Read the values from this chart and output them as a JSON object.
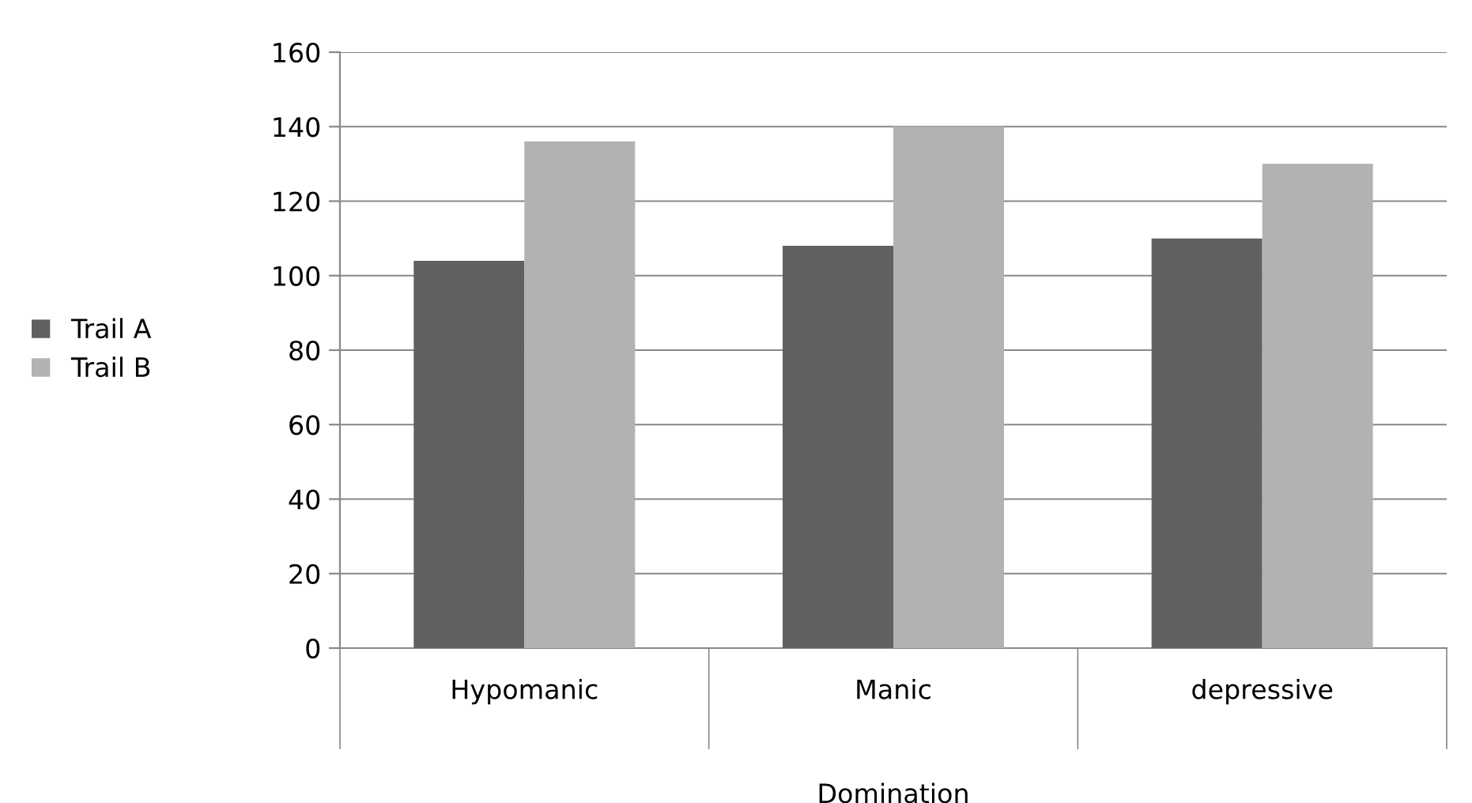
{
  "chart_data": {
    "type": "bar",
    "categories": [
      "Hypomanic",
      "Manic",
      "depressive"
    ],
    "xlabel": "Domination",
    "series": [
      {
        "name": "Trail A",
        "color": "#606060",
        "values": [
          104,
          108,
          110
        ]
      },
      {
        "name": "Trail B",
        "color": "#b2b2b2",
        "values": [
          136,
          140,
          130
        ]
      }
    ],
    "ylim": [
      0,
      160
    ],
    "yticks": [
      0,
      20,
      40,
      60,
      80,
      100,
      120,
      140,
      160
    ],
    "grid": "y",
    "legend": "left"
  }
}
